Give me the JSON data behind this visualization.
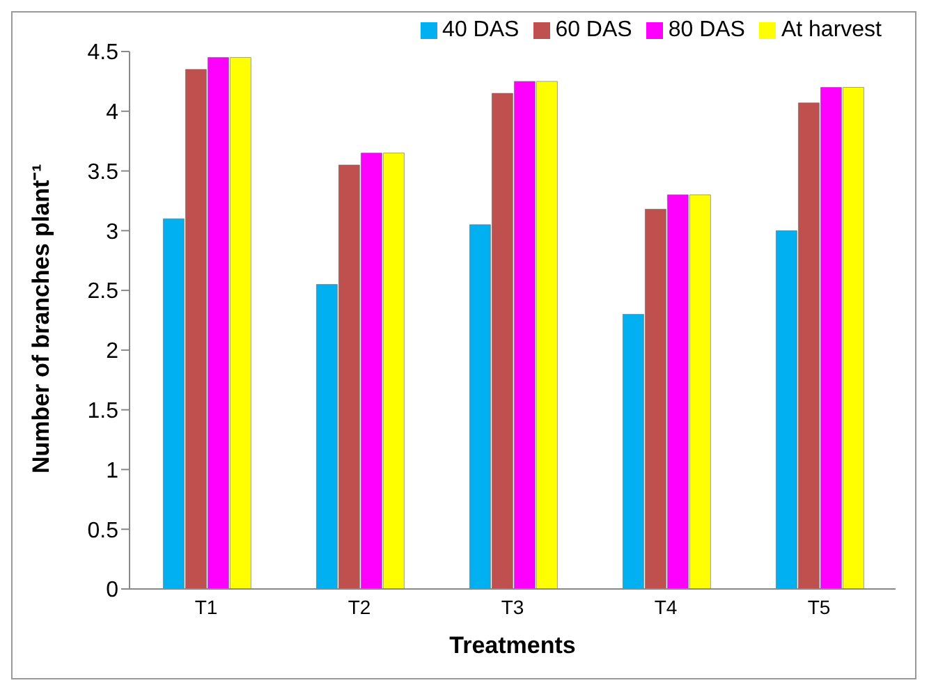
{
  "chart_data": {
    "type": "bar",
    "xlabel": "Treatments",
    "ylabel": "Number of branches plant⁻¹",
    "categories": [
      "T1",
      "T2",
      "T3",
      "T4",
      "T5"
    ],
    "series": [
      {
        "name": "40 DAS",
        "color": "#00b0f0",
        "values": [
          3.1,
          2.55,
          3.05,
          2.3,
          3.0
        ]
      },
      {
        "name": "60 DAS",
        "color": "#c0504d",
        "values": [
          4.35,
          3.55,
          4.15,
          3.18,
          4.07
        ]
      },
      {
        "name": "80 DAS",
        "color": "#ff00ff",
        "values": [
          4.45,
          3.65,
          4.25,
          3.3,
          4.2
        ]
      },
      {
        "name": "At harvest",
        "color": "#ffff00",
        "values": [
          4.45,
          3.65,
          4.25,
          3.3,
          4.2
        ]
      }
    ],
    "ylim": [
      0,
      4.5
    ],
    "yticks": [
      0,
      0.5,
      1,
      1.5,
      2,
      2.5,
      3,
      3.5,
      4,
      4.5
    ],
    "grid": false,
    "legend": "top right"
  }
}
